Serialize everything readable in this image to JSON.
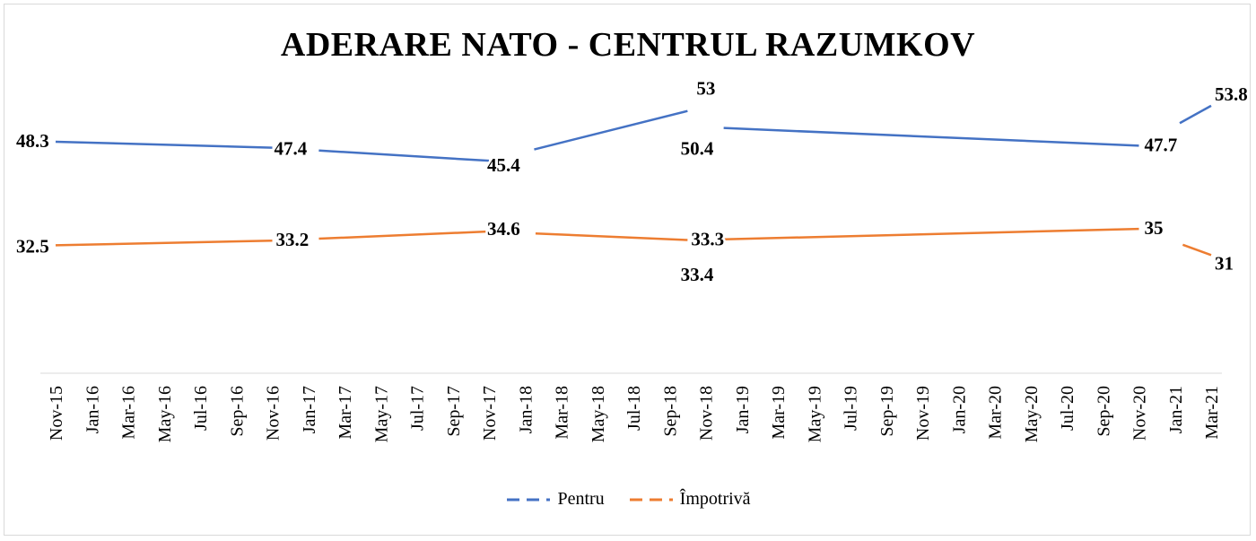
{
  "title": "ADERARE NATO - CENTRUL RAZUMKOV",
  "colors": {
    "pentru": "#4472c4",
    "impotriva": "#ed7d31",
    "axis": "#d9d9d9",
    "text": "#000000"
  },
  "chart_data": {
    "type": "line",
    "title": "ADERARE NATO - CENTRUL RAZUMKOV",
    "categories": [
      "Nov-15",
      "Jan-16",
      "Mar-16",
      "May-16",
      "Jul-16",
      "Sep-16",
      "Nov-16",
      "Jan-17",
      "Mar-17",
      "May-17",
      "Jul-17",
      "Sep-17",
      "Nov-17",
      "Jan-18",
      "Mar-18",
      "May-18",
      "Jul-18",
      "Sep-18",
      "Nov-18",
      "Jan-19",
      "Mar-19",
      "May-19",
      "Jul-19",
      "Sep-19",
      "Nov-19",
      "Jan-20",
      "Mar-20",
      "May-20",
      "Jul-20",
      "Sep-20",
      "Nov-20",
      "Jan-21",
      "Mar-21"
    ],
    "series": [
      {
        "name": "Pentru",
        "points": [
          {
            "x": "Nov-15",
            "y": 48.3,
            "label": "48.3"
          },
          {
            "x": "Nov-16",
            "y": 47.4,
            "label": "47.4"
          },
          {
            "x": "Nov-17",
            "y": 45.4,
            "label": "45.4"
          },
          {
            "x": "Oct-18",
            "y": 53,
            "label": "53"
          },
          {
            "x": "Dec-18",
            "y": 50.4,
            "label": "50.4"
          },
          {
            "x": "Nov-20",
            "y": 47.7,
            "label": "47.7"
          },
          {
            "x": "Mar-21",
            "y": 53.8,
            "label": "53.8"
          }
        ]
      },
      {
        "name": "Împotrivă",
        "points": [
          {
            "x": "Nov-15",
            "y": 32.5,
            "label": "32.5"
          },
          {
            "x": "Nov-16",
            "y": 33.2,
            "label": "33.2"
          },
          {
            "x": "Nov-17",
            "y": 34.6,
            "label": "34.6"
          },
          {
            "x": "Oct-18",
            "y": 33.3,
            "label": "33.3"
          },
          {
            "x": "Dec-18",
            "y": 33.4,
            "label": "33.4"
          },
          {
            "x": "Nov-20",
            "y": 35,
            "label": "35"
          },
          {
            "x": "Mar-21",
            "y": 31,
            "label": "31"
          }
        ]
      }
    ],
    "legend_position": "bottom",
    "grid": false
  },
  "legend": {
    "pentru": "Pentru",
    "impotriva": "Împotrivă"
  }
}
